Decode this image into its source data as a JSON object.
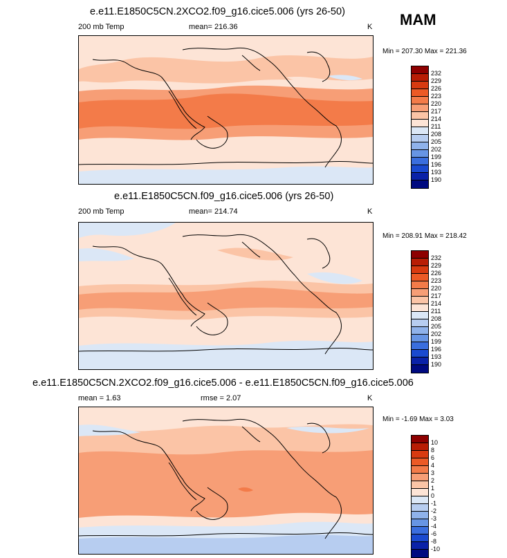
{
  "season": "MAM",
  "panels": [
    {
      "title": "e.e11.E1850C5CN.2XCO2.f09_g16.cice5.006 (yrs 26-50)",
      "left_label": "200 mb Temp",
      "center_label": "mean= 216.36",
      "units": "K",
      "minmax": "Min = 207.30 Max = 221.36",
      "colorbar": {
        "labels": [
          "232",
          "229",
          "226",
          "223",
          "220",
          "217",
          "214",
          "211",
          "208",
          "205",
          "202",
          "199",
          "196",
          "193",
          "190"
        ],
        "colors": [
          "#8e0000",
          "#b81d05",
          "#d83a10",
          "#ec5a26",
          "#f37b49",
          "#f79e76",
          "#fbc4a6",
          "#fde4d6",
          "#dbe7f6",
          "#b7cdf0",
          "#8fb2ea",
          "#6795e4",
          "#3a6ede",
          "#1a4ad0",
          "#0a22a8",
          "#000a80"
        ]
      }
    },
    {
      "title": "e.e11.E1850C5CN.f09_g16.cice5.006 (yrs 26-50)",
      "left_label": "200 mb Temp",
      "center_label": "mean= 214.74",
      "units": "K",
      "minmax": "Min = 208.91 Max = 218.42",
      "colorbar": {
        "labels": [
          "232",
          "229",
          "226",
          "223",
          "220",
          "217",
          "214",
          "211",
          "208",
          "205",
          "202",
          "199",
          "196",
          "193",
          "190"
        ],
        "colors": [
          "#8e0000",
          "#b81d05",
          "#d83a10",
          "#ec5a26",
          "#f37b49",
          "#f79e76",
          "#fbc4a6",
          "#fde4d6",
          "#dbe7f6",
          "#b7cdf0",
          "#8fb2ea",
          "#6795e4",
          "#3a6ede",
          "#1a4ad0",
          "#0a22a8",
          "#000a80"
        ]
      }
    },
    {
      "title": "e.e11.E1850C5CN.2XCO2.f09_g16.cice5.006 - e.e11.E1850C5CN.f09_g16.cice5.006",
      "left_label": "mean =   1.63",
      "center_label": "rmse =   2.07",
      "units": "K",
      "minmax": "Min = -1.69 Max =  3.03",
      "colorbar": {
        "labels": [
          "10",
          "8",
          "6",
          "4",
          "3",
          "2",
          "1",
          "0",
          "-1",
          "-2",
          "-3",
          "-4",
          "-6",
          "-8",
          "-10"
        ],
        "colors": [
          "#8e0000",
          "#b81d05",
          "#d83a10",
          "#ec5a26",
          "#f37b49",
          "#f79e76",
          "#fbc4a6",
          "#fde4d6",
          "#dbe7f6",
          "#b7cdf0",
          "#8fb2ea",
          "#6795e4",
          "#3a6ede",
          "#1a4ad0",
          "#0a22a8",
          "#000a80"
        ]
      }
    }
  ]
}
